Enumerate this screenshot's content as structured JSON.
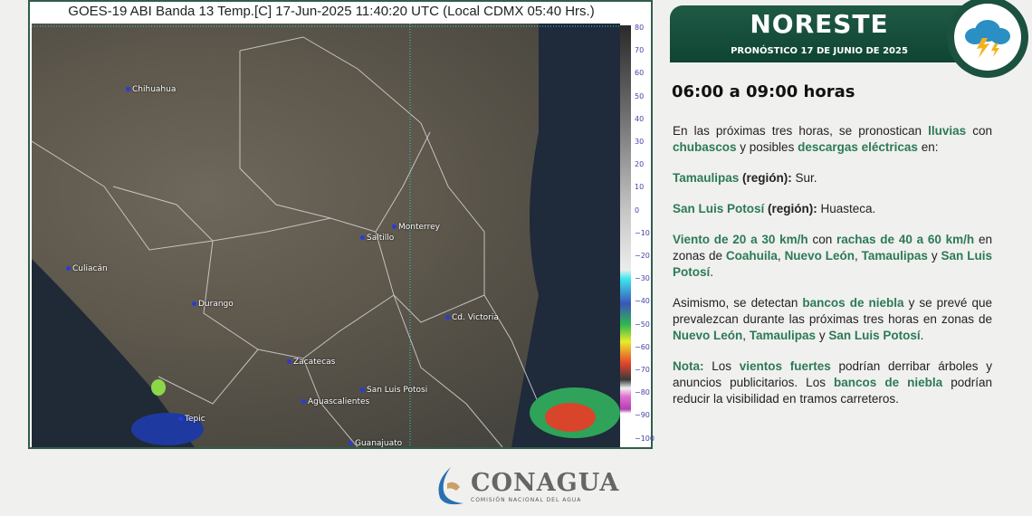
{
  "satellite": {
    "title": "GOES-19 ABI Banda 13 Temp.[C] 17-Jun-2025 11:40:20 UTC (Local CDMX  05:40 Hrs.)",
    "cities": [
      {
        "name": "Chihuahua"
      },
      {
        "name": "Culiacán"
      },
      {
        "name": "Durango"
      },
      {
        "name": "Saltillo"
      },
      {
        "name": "Monterrey"
      },
      {
        "name": "Cd. Victoria"
      },
      {
        "name": "Zacatecas"
      },
      {
        "name": "San Luis Potosi"
      },
      {
        "name": "Aguascalientes"
      },
      {
        "name": "Tepic"
      },
      {
        "name": "Guanajuato"
      }
    ],
    "colorbar_ticks": [
      "80",
      "70",
      "60",
      "50",
      "40",
      "30",
      "20",
      "10",
      "0",
      "−10",
      "−20",
      "−30",
      "−40",
      "−50",
      "−60",
      "−70",
      "−80",
      "−90",
      "−100"
    ]
  },
  "panel": {
    "region": "NORESTE",
    "date": "PRONÓSTICO 17 DE JUNIO DE 2025",
    "icon": "storm-cloud-lightning-icon",
    "hours": "06:00 a 09:00 horas",
    "p1": [
      "En las próximas tres horas, se pronostican ",
      "lluvias",
      " con ",
      "chubascos",
      " y posibles ",
      "descargas eléctricas",
      " en:"
    ],
    "p2": [
      "Tamaulipas",
      " (región):",
      " Sur."
    ],
    "p3": [
      "San Luis Potosí",
      " (región):",
      " Huasteca."
    ],
    "p4": [
      "Viento de 20 a 30 km/h",
      " con ",
      "rachas de 40 a 60 km/h",
      " en zonas de ",
      "Coahuila",
      ", ",
      "Nuevo León",
      ", ",
      "Tamaulipas",
      " y ",
      "San Luis Potosí",
      "."
    ],
    "p5": [
      "Asimismo, se detectan ",
      "bancos de  niebla",
      " y se prevé que prevalezcan durante las próximas tres horas en zonas de ",
      "Nuevo León",
      ", ",
      "Tamaulipas",
      " y ",
      "San Luis Potosí",
      "."
    ],
    "p6": [
      "Nota:",
      " Los ",
      "vientos fuertes",
      " podrían derribar árboles y anuncios publicitarios. Los ",
      "bancos de niebla",
      " podrían reducir la visibilidad en tramos carreteros."
    ]
  },
  "footer": {
    "logo": "CONAGUA",
    "logo_sub": "COMISIÓN NACIONAL DEL AGUA"
  },
  "colors": {
    "brand_green": "#1b5140",
    "text_green": "#2c7a55"
  }
}
